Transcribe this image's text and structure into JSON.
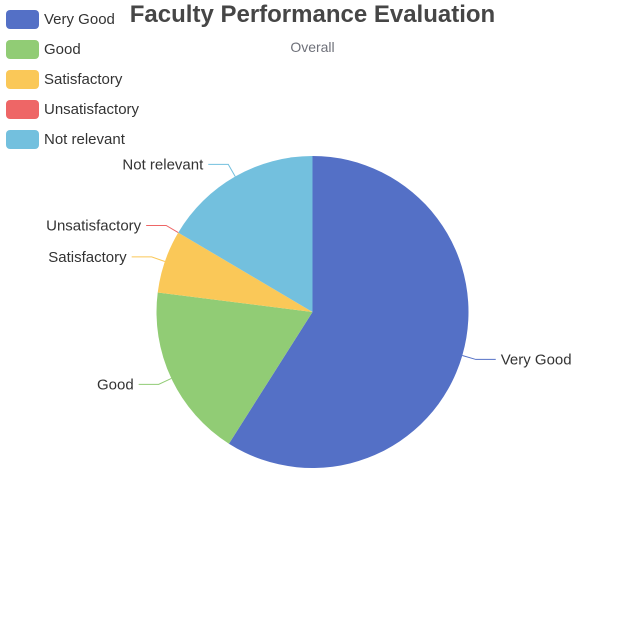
{
  "chart_data": {
    "type": "pie",
    "title": "Faculty Performance Evaluation",
    "subtitle": "Overall",
    "legend_position": "top-left",
    "series": [
      {
        "name": "Very Good",
        "value": 59,
        "color": "#5470c6"
      },
      {
        "name": "Good",
        "value": 18,
        "color": "#91cc75"
      },
      {
        "name": "Satisfactory",
        "value": 6.5,
        "color": "#fac858"
      },
      {
        "name": "Unsatisfactory",
        "value": 0,
        "color": "#ee6666"
      },
      {
        "name": "Not relevant",
        "value": 16.5,
        "color": "#73c0de"
      }
    ]
  }
}
